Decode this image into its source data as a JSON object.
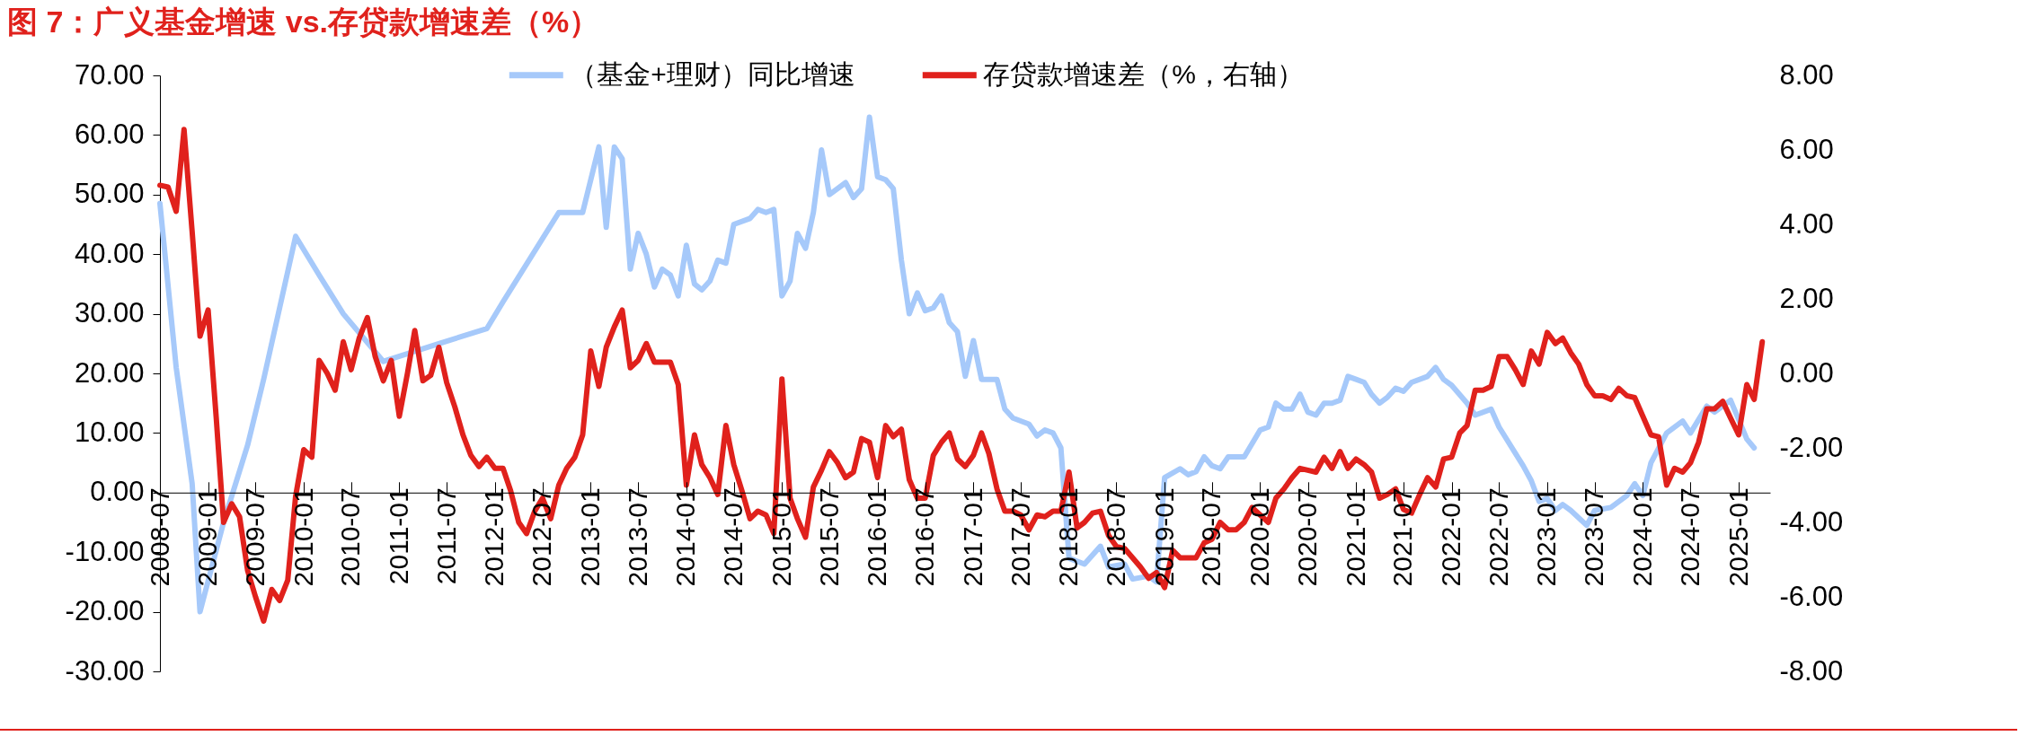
{
  "chart_data": {
    "type": "line",
    "title": "图 7：广义基金增速 vs.存贷款增速差（%）",
    "legend": "top",
    "xlim": [
      "2008-07",
      "2025-05"
    ],
    "xticks": [
      "2008-07",
      "2009-01",
      "2009-07",
      "2010-01",
      "2010-07",
      "2011-01",
      "2011-07",
      "2012-01",
      "2012-07",
      "2013-01",
      "2013-07",
      "2014-01",
      "2014-07",
      "2015-01",
      "2015-07",
      "2016-01",
      "2016-07",
      "2017-01",
      "2017-07",
      "2018-01",
      "2018-07",
      "2019-01",
      "2019-07",
      "2020-01",
      "2020-07",
      "2021-01",
      "2021-07",
      "2022-01",
      "2022-07",
      "2023-01",
      "2023-07",
      "2024-01",
      "2024-07",
      "2025-01"
    ],
    "ylim": [
      -30,
      70
    ],
    "yticks": [
      {
        "value": -30,
        "label": "-30.00"
      },
      {
        "value": -20,
        "label": "-20.00"
      },
      {
        "value": -10,
        "label": "-10.00"
      },
      {
        "value": 0,
        "label": "0.00"
      },
      {
        "value": 10,
        "label": "10.00"
      },
      {
        "value": 20,
        "label": "20.00"
      },
      {
        "value": 30,
        "label": "30.00"
      },
      {
        "value": 40,
        "label": "40.00"
      },
      {
        "value": 50,
        "label": "50.00"
      },
      {
        "value": 60,
        "label": "60.00"
      },
      {
        "value": 70,
        "label": "70.00"
      }
    ],
    "y2lim": [
      -8,
      8
    ],
    "y2ticks": [
      {
        "value": -8,
        "label": "-8.00"
      },
      {
        "value": -6,
        "label": "-6.00"
      },
      {
        "value": -4,
        "label": "-4.00"
      },
      {
        "value": -2,
        "label": "-2.00"
      },
      {
        "value": 0,
        "label": "0.00"
      },
      {
        "value": 2,
        "label": "2.00"
      },
      {
        "value": 4,
        "label": "4.00"
      },
      {
        "value": 6,
        "label": "6.00"
      },
      {
        "value": 8,
        "label": "8.00"
      }
    ],
    "series": [
      {
        "name": "（基金+理财）同比增速",
        "color": "#a6c9fa",
        "x": [
          "2008-07",
          "2008-09",
          "2008-11",
          "2008-12",
          "2009-03",
          "2009-06",
          "2009-08",
          "2009-12",
          "2010-03",
          "2010-06",
          "2010-11",
          "2011-06",
          "2011-12",
          "2012-02",
          "2012-09",
          "2012-12",
          "2013-02",
          "2013-03",
          "2013-04",
          "2013-05",
          "2013-06",
          "2013-07",
          "2013-08",
          "2013-09",
          "2013-10",
          "2013-11",
          "2013-12",
          "2014-01",
          "2014-02",
          "2014-03",
          "2014-04",
          "2014-05",
          "2014-06",
          "2014-07",
          "2014-09",
          "2014-10",
          "2014-11",
          "2014-12",
          "2015-01",
          "2015-02",
          "2015-03",
          "2015-04",
          "2015-05",
          "2015-06",
          "2015-07",
          "2015-09",
          "2015-10",
          "2015-11",
          "2015-12",
          "2016-01",
          "2016-02",
          "2016-03",
          "2016-04",
          "2016-05",
          "2016-06",
          "2016-07",
          "2016-08",
          "2016-09",
          "2016-10",
          "2016-11",
          "2016-12",
          "2017-01",
          "2017-02",
          "2017-04",
          "2017-05",
          "2017-06",
          "2017-08",
          "2017-09",
          "2017-10",
          "2017-11",
          "2017-12",
          "2018-01",
          "2018-03",
          "2018-05",
          "2018-06",
          "2018-08",
          "2018-09",
          "2018-11",
          "2018-12",
          "2019-01",
          "2019-03",
          "2019-04",
          "2019-05",
          "2019-06",
          "2019-07",
          "2019-08",
          "2019-09",
          "2019-11",
          "2020-01",
          "2020-02",
          "2020-03",
          "2020-04",
          "2020-05",
          "2020-06",
          "2020-07",
          "2020-08",
          "2020-09",
          "2020-10",
          "2020-11",
          "2020-12",
          "2021-01",
          "2021-02",
          "2021-03",
          "2021-04",
          "2021-05",
          "2021-06",
          "2021-07",
          "2021-08",
          "2021-10",
          "2021-11",
          "2021-12",
          "2022-01",
          "2022-03",
          "2022-04",
          "2022-06",
          "2022-07",
          "2022-10",
          "2022-11",
          "2022-12",
          "2023-01",
          "2023-02",
          "2023-03",
          "2023-04",
          "2023-06",
          "2023-07",
          "2023-09",
          "2023-11",
          "2023-12",
          "2024-01",
          "2024-02",
          "2024-04",
          "2024-06",
          "2024-07",
          "2024-09",
          "2024-10",
          "2024-12",
          "2025-02",
          "2025-03"
        ],
        "values": [
          48.5,
          21,
          1.5,
          -20,
          -5,
          8,
          19,
          43,
          36.5,
          30,
          22,
          25,
          27.5,
          32,
          47,
          47,
          58,
          44.5,
          58,
          56,
          37.5,
          43.5,
          40,
          34.5,
          37.5,
          36.5,
          33,
          41.5,
          35,
          34,
          35.5,
          39,
          38.5,
          45,
          46,
          47.5,
          47,
          47.5,
          33,
          35.5,
          43.5,
          41,
          47,
          57.5,
          50,
          52,
          49.5,
          51,
          63,
          53,
          52.5,
          51,
          39,
          30,
          33.5,
          30.5,
          31,
          33,
          28.5,
          27,
          19.5,
          25.5,
          19,
          19,
          14,
          12.5,
          11.5,
          9.5,
          10.5,
          10,
          7.5,
          -11,
          -12,
          -9,
          -12.5,
          -12,
          -14.5,
          -14,
          -15,
          2.5,
          4,
          3,
          3.5,
          6,
          4.5,
          4,
          6,
          6,
          10.5,
          11,
          15,
          14,
          14,
          16.5,
          13.5,
          13,
          15,
          15,
          15.5,
          19.5,
          19,
          18.5,
          16.5,
          15,
          16,
          17.5,
          17,
          18.5,
          19.5,
          21,
          19,
          18,
          15,
          13,
          14,
          11,
          4.5,
          2,
          -1.5,
          -1,
          -3,
          -2,
          -3,
          -5.5,
          -3,
          -2.5,
          -0.5,
          1.5,
          -0.5,
          5,
          10,
          12,
          10,
          14.5,
          13.5,
          15.5,
          9,
          7.5
        ]
      },
      {
        "name": "存贷款增速差（%，右轴）",
        "color": "#e0211c",
        "axis": "y2",
        "x": [
          "2008-07",
          "2008-08",
          "2008-09",
          "2008-10",
          "2008-11",
          "2008-12",
          "2009-01",
          "2009-02",
          "2009-03",
          "2009-04",
          "2009-05",
          "2009-06",
          "2009-07",
          "2009-08",
          "2009-09",
          "2009-10",
          "2009-11",
          "2009-12",
          "2010-01",
          "2010-02",
          "2010-03",
          "2010-04",
          "2010-05",
          "2010-06",
          "2010-07",
          "2010-08",
          "2010-09",
          "2010-10",
          "2010-11",
          "2010-12",
          "2011-01",
          "2011-02",
          "2011-03",
          "2011-04",
          "2011-05",
          "2011-06",
          "2011-07",
          "2011-08",
          "2011-09",
          "2011-10",
          "2011-11",
          "2011-12",
          "2012-01",
          "2012-02",
          "2012-03",
          "2012-04",
          "2012-05",
          "2012-06",
          "2012-07",
          "2012-08",
          "2012-09",
          "2012-10",
          "2012-11",
          "2012-12",
          "2013-01",
          "2013-02",
          "2013-03",
          "2013-04",
          "2013-05",
          "2013-06",
          "2013-07",
          "2013-08",
          "2013-09",
          "2013-10",
          "2013-11",
          "2013-12",
          "2014-01",
          "2014-02",
          "2014-03",
          "2014-04",
          "2014-05",
          "2014-06",
          "2014-07",
          "2014-08",
          "2014-09",
          "2014-10",
          "2014-11",
          "2014-12",
          "2015-01",
          "2015-02",
          "2015-03",
          "2015-04",
          "2015-05",
          "2015-06",
          "2015-07",
          "2015-08",
          "2015-09",
          "2015-10",
          "2015-11",
          "2015-12",
          "2016-01",
          "2016-02",
          "2016-03",
          "2016-04",
          "2016-05",
          "2016-06",
          "2016-07",
          "2016-08",
          "2016-09",
          "2016-10",
          "2016-11",
          "2016-12",
          "2017-01",
          "2017-02",
          "2017-03",
          "2017-04",
          "2017-05",
          "2017-06",
          "2017-07",
          "2017-08",
          "2017-09",
          "2017-10",
          "2017-11",
          "2017-12",
          "2018-01",
          "2018-02",
          "2018-03",
          "2018-04",
          "2018-05",
          "2018-06",
          "2018-07",
          "2018-08",
          "2018-09",
          "2018-10",
          "2018-11",
          "2018-12",
          "2019-01",
          "2019-02",
          "2019-03",
          "2019-04",
          "2019-05",
          "2019-06",
          "2019-07",
          "2019-08",
          "2019-09",
          "2019-10",
          "2019-11",
          "2019-12",
          "2020-01",
          "2020-02",
          "2020-03",
          "2020-04",
          "2020-05",
          "2020-06",
          "2020-07",
          "2020-08",
          "2020-09",
          "2020-10",
          "2020-11",
          "2020-12",
          "2021-01",
          "2021-02",
          "2021-03",
          "2021-04",
          "2021-05",
          "2021-06",
          "2021-07",
          "2021-08",
          "2021-09",
          "2021-10",
          "2021-11",
          "2021-12",
          "2022-01",
          "2022-02",
          "2022-03",
          "2022-04",
          "2022-05",
          "2022-06",
          "2022-07",
          "2022-08",
          "2022-09",
          "2022-10",
          "2022-11",
          "2022-12",
          "2023-01",
          "2023-02",
          "2023-03",
          "2023-04",
          "2023-05",
          "2023-06",
          "2023-07",
          "2023-08",
          "2023-09",
          "2023-10",
          "2023-11",
          "2023-12",
          "2024-01",
          "2024-02",
          "2024-03",
          "2024-04",
          "2024-05",
          "2024-06",
          "2024-07",
          "2024-08",
          "2024-09",
          "2024-10",
          "2024-11",
          "2024-12",
          "2025-01",
          "2025-02",
          "2025-03",
          "2025-04"
        ],
        "values": [
          5.05,
          5.0,
          4.35,
          6.55,
          3.8,
          1.0,
          1.7,
          -1.2,
          -4.0,
          -3.5,
          -3.85,
          -5.3,
          -6.0,
          -6.65,
          -5.8,
          -6.1,
          -5.55,
          -3.3,
          -2.05,
          -2.25,
          0.35,
          0.0,
          -0.45,
          0.85,
          0.1,
          0.95,
          1.5,
          0.45,
          -0.2,
          0.35,
          -1.15,
          0.0,
          1.15,
          -0.2,
          -0.05,
          0.7,
          -0.25,
          -0.9,
          -1.65,
          -2.2,
          -2.5,
          -2.25,
          -2.55,
          -2.55,
          -3.15,
          -4.0,
          -4.3,
          -3.7,
          -3.35,
          -3.9,
          -3.0,
          -2.55,
          -2.25,
          -1.65,
          0.6,
          -0.35,
          0.7,
          1.25,
          1.7,
          0.15,
          0.35,
          0.8,
          0.3,
          0.3,
          0.3,
          -0.3,
          -3.0,
          -1.65,
          -2.45,
          -2.8,
          -3.25,
          -1.4,
          -2.45,
          -3.15,
          -3.9,
          -3.7,
          -3.8,
          -4.3,
          -0.15,
          -3.35,
          -3.9,
          -4.4,
          -3.05,
          -2.6,
          -2.1,
          -2.4,
          -2.8,
          -2.65,
          -1.75,
          -1.85,
          -2.8,
          -1.4,
          -1.7,
          -1.5,
          -2.85,
          -3.35,
          -3.35,
          -2.2,
          -1.85,
          -1.6,
          -2.3,
          -2.5,
          -2.2,
          -1.6,
          -2.15,
          -3.1,
          -3.7,
          -3.7,
          -3.8,
          -4.2,
          -3.8,
          -3.85,
          -3.7,
          -3.7,
          -2.65,
          -4.15,
          -4.0,
          -3.75,
          -3.7,
          -4.35,
          -4.65,
          -4.7,
          -4.95,
          -5.2,
          -5.5,
          -5.35,
          -5.75,
          -4.75,
          -4.95,
          -4.95,
          -4.95,
          -4.55,
          -4.45,
          -4.0,
          -4.2,
          -4.2,
          -4.0,
          -3.6,
          -3.8,
          -4.0,
          -3.35,
          -3.1,
          -2.8,
          -2.55,
          -2.6,
          -2.65,
          -2.25,
          -2.55,
          -2.1,
          -2.55,
          -2.3,
          -2.45,
          -2.65,
          -3.35,
          -3.25,
          -3.1,
          -3.65,
          -3.75,
          -3.25,
          -2.8,
          -3.05,
          -2.3,
          -2.25,
          -1.6,
          -1.4,
          -0.45,
          -0.45,
          -0.35,
          0.45,
          0.45,
          0.1,
          -0.3,
          0.6,
          0.25,
          1.1,
          0.8,
          0.95,
          0.55,
          0.25,
          -0.3,
          -0.6,
          -0.6,
          -0.7,
          -0.4,
          -0.6,
          -0.65,
          -1.15,
          -1.65,
          -1.7,
          -3.0,
          -2.55,
          -2.65,
          -2.4,
          -1.85,
          -0.95,
          -0.95,
          -0.75,
          -1.2,
          -1.65,
          -0.3,
          -0.7,
          0.85
        ]
      }
    ]
  }
}
